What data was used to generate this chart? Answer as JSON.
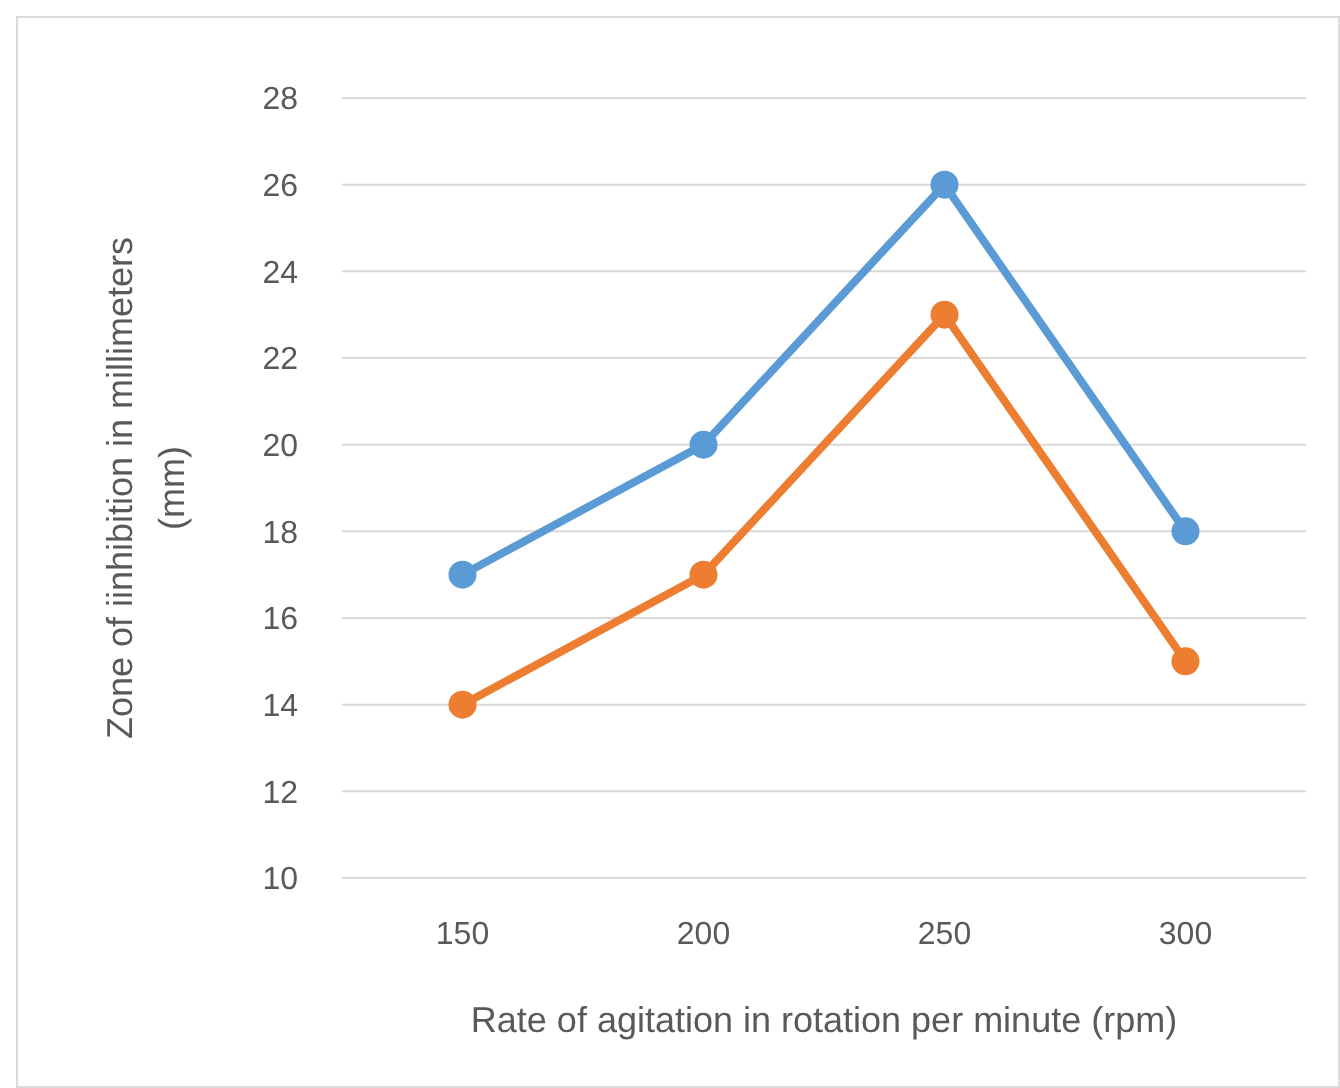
{
  "chart_data": {
    "type": "line",
    "xlabel": "Rate of agitation in rotation per minute (rpm)",
    "ylabel": "Zone of iinhibition in millimeters (mm)",
    "categories": [
      "150",
      "200",
      "250",
      "300"
    ],
    "series": [
      {
        "color": "#5b9bd5",
        "values": [
          17,
          20,
          26,
          18
        ]
      },
      {
        "color": "#ed7d31",
        "values": [
          14,
          17,
          23,
          15
        ]
      }
    ],
    "ylim": [
      10,
      28
    ],
    "yticks": [
      10,
      12,
      14,
      16,
      18,
      20,
      22,
      24,
      26,
      28
    ],
    "grid": "y",
    "marker": "circle",
    "line_style": "solid"
  }
}
